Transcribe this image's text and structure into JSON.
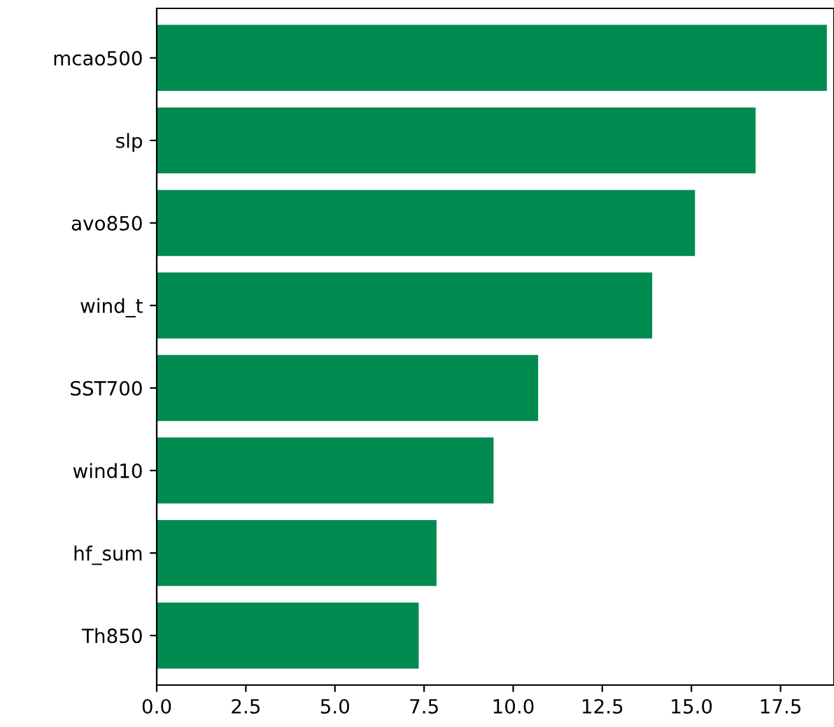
{
  "chart_data": {
    "type": "bar",
    "orientation": "horizontal",
    "categories": [
      "mcao500",
      "slp",
      "avo850",
      "wind_t",
      "SST700",
      "wind10",
      "hf_sum",
      "Th850"
    ],
    "values": [
      18.8,
      16.8,
      15.1,
      13.9,
      10.7,
      9.45,
      7.85,
      7.35
    ],
    "color": "#008c50",
    "xlim": [
      0,
      19.0
    ],
    "xticks": [
      {
        "value": 0,
        "label": "0.0"
      },
      {
        "value": 2.5,
        "label": "2.5"
      },
      {
        "value": 5,
        "label": "5.0"
      },
      {
        "value": 7.5,
        "label": "7.5"
      },
      {
        "value": 10,
        "label": "10.0"
      },
      {
        "value": 12.5,
        "label": "12.5"
      },
      {
        "value": 15,
        "label": "15.0"
      },
      {
        "value": 17.5,
        "label": "17.5"
      }
    ],
    "grid": false,
    "legend": false
  }
}
